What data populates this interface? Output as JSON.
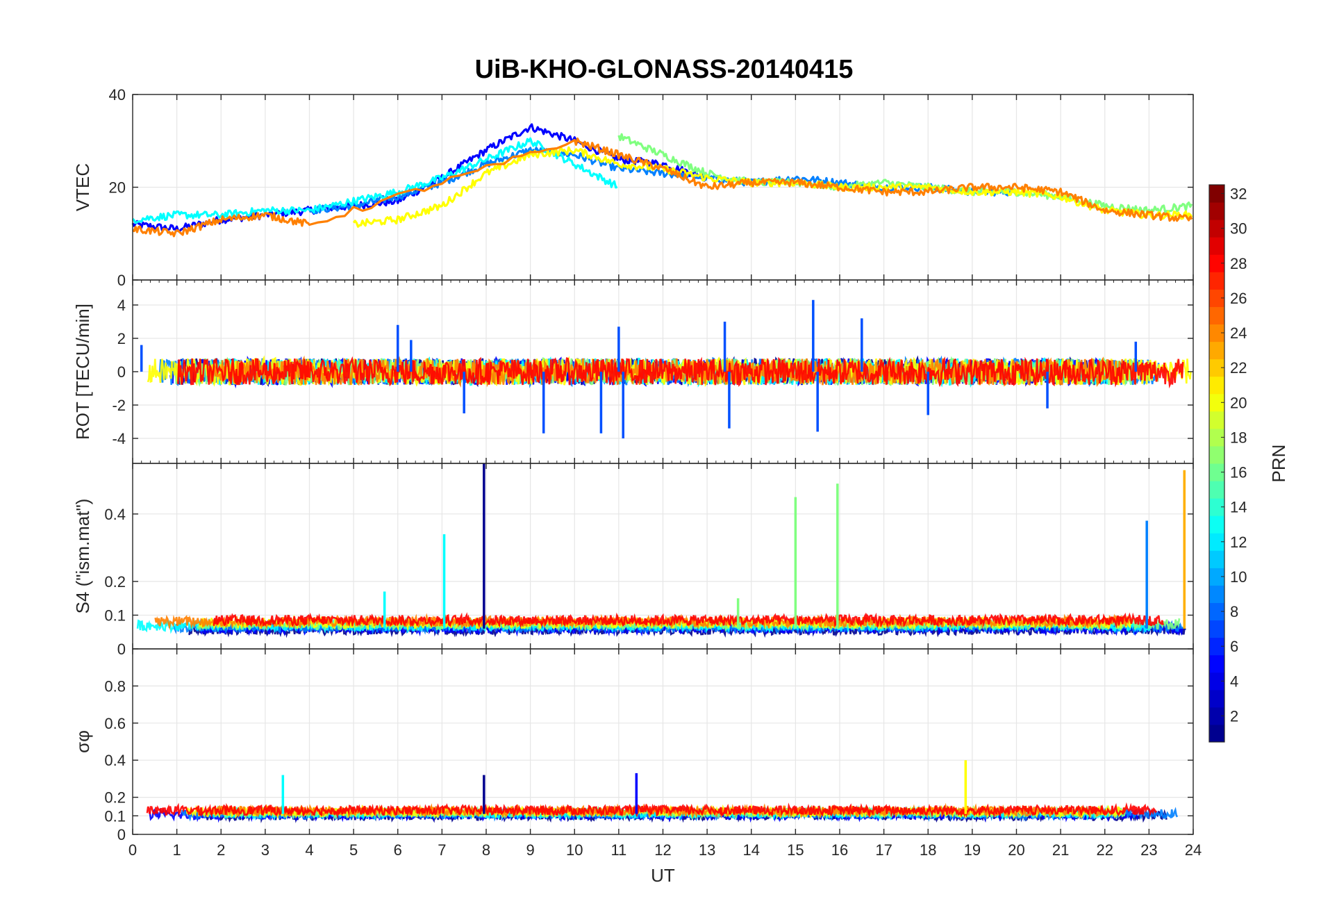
{
  "figure": {
    "title": "UiB-KHO-GLONASS-20140415",
    "colorbar_label": "PRN",
    "colormap": [
      "#00008f",
      "#0000ff",
      "#0080ff",
      "#00ffff",
      "#80ff80",
      "#ffff00",
      "#ff8000",
      "#ff0000",
      "#800000"
    ]
  },
  "chart_data": [
    {
      "type": "line",
      "panel": "vtec",
      "ylabel": "VTEC",
      "xlabel": "",
      "xlim": [
        0,
        24
      ],
      "ylim": [
        0,
        40
      ],
      "xticks": [
        0,
        1,
        2,
        3,
        4,
        5,
        6,
        7,
        8,
        9,
        10,
        11,
        12,
        13,
        14,
        15,
        16,
        17,
        18,
        19,
        20,
        21,
        22,
        23,
        24
      ],
      "yticks": [
        0,
        20,
        40
      ],
      "grid": true,
      "series": [
        {
          "color": "#0000ff",
          "x": [
            0,
            1,
            2,
            3,
            4,
            5,
            6,
            7,
            8,
            9,
            10,
            11,
            12,
            13
          ],
          "values": [
            12,
            11,
            13,
            14,
            15,
            16,
            17,
            22,
            28,
            33,
            30,
            26,
            25,
            22
          ]
        },
        {
          "color": "#0080ff",
          "x": [
            4,
            5,
            6,
            7,
            8,
            9,
            10,
            11,
            12,
            13,
            14,
            15,
            16,
            17,
            18,
            19,
            20
          ],
          "values": [
            15,
            16,
            18,
            21,
            25,
            28,
            27,
            24,
            23,
            22,
            21,
            22,
            21,
            20,
            20,
            19,
            19
          ]
        },
        {
          "color": "#00ffff",
          "x": [
            0,
            1,
            2,
            3,
            4,
            5,
            6,
            7,
            8,
            9,
            10,
            11
          ],
          "values": [
            13,
            14,
            14,
            15,
            15,
            17,
            19,
            22,
            26,
            30,
            25,
            20
          ]
        },
        {
          "color": "#80ff80",
          "x": [
            11,
            12,
            13,
            14,
            15,
            16,
            17,
            18,
            19,
            20,
            21,
            22,
            23,
            24
          ],
          "values": [
            31,
            27,
            23,
            21,
            21,
            20,
            21,
            20,
            19,
            19,
            18,
            16,
            15,
            16
          ]
        },
        {
          "color": "#ffff00",
          "x": [
            5,
            6,
            7,
            8,
            9,
            10,
            11,
            12,
            13,
            14,
            15,
            16,
            17,
            18,
            19,
            20,
            21,
            22,
            23,
            24
          ],
          "values": [
            12,
            13,
            16,
            23,
            27,
            28,
            25,
            24,
            22,
            21,
            21,
            20,
            20,
            20,
            19,
            19,
            18,
            15,
            14,
            14
          ]
        },
        {
          "color": "#ff8000",
          "x": [
            0,
            1,
            2,
            3,
            4,
            10,
            11,
            12,
            13,
            14,
            15,
            16,
            17,
            18,
            19,
            20,
            21,
            22,
            23,
            24
          ],
          "values": [
            11,
            10,
            13,
            14,
            12,
            30,
            27,
            24,
            20,
            21,
            21,
            20,
            19,
            19,
            20,
            20,
            19,
            15,
            14,
            13
          ]
        }
      ]
    },
    {
      "type": "line",
      "panel": "rot",
      "ylabel": "ROT [TECU/min]",
      "xlabel": "",
      "xlim": [
        0,
        24
      ],
      "ylim": [
        -5.5,
        5.5
      ],
      "xticks": [
        0,
        1,
        2,
        3,
        4,
        5,
        6,
        7,
        8,
        9,
        10,
        11,
        12,
        13,
        14,
        15,
        16,
        17,
        18,
        19,
        20,
        21,
        22,
        23,
        24
      ],
      "yticks": [
        -4,
        -2,
        0,
        2,
        4
      ],
      "grid": true,
      "peaks": [
        {
          "x": 6.0,
          "values": 2.8
        },
        {
          "x": 6.3,
          "values": 1.9
        },
        {
          "x": 9.3,
          "values": -3.7
        },
        {
          "x": 10.6,
          "values": -3.7
        },
        {
          "x": 11.1,
          "values": -4.0
        },
        {
          "x": 11.0,
          "values": 2.7
        },
        {
          "x": 13.5,
          "values": -3.4
        },
        {
          "x": 13.4,
          "values": 3.0
        },
        {
          "x": 15.4,
          "values": 4.3
        },
        {
          "x": 15.5,
          "values": -3.6
        },
        {
          "x": 16.5,
          "values": 3.2
        },
        {
          "x": 18.0,
          "values": -2.6
        },
        {
          "x": 22.7,
          "values": 1.8
        },
        {
          "x": 20.7,
          "values": -2.2
        },
        {
          "x": 7.5,
          "values": -2.5
        },
        {
          "x": 0.2,
          "values": 1.6
        }
      ]
    },
    {
      "type": "line",
      "panel": "s4",
      "ylabel": "S4 (\"ism.mat\")",
      "xlabel": "",
      "xlim": [
        0,
        24
      ],
      "ylim": [
        0,
        0.55
      ],
      "xticks": [
        0,
        1,
        2,
        3,
        4,
        5,
        6,
        7,
        8,
        9,
        10,
        11,
        12,
        13,
        14,
        15,
        16,
        17,
        18,
        19,
        20,
        21,
        22,
        23,
        24
      ],
      "yticks": [
        0,
        0.1,
        0.2,
        0.4
      ],
      "grid": true,
      "spikes": [
        {
          "x": 7.95,
          "values": 0.55,
          "color": "#00008f"
        },
        {
          "x": 7.05,
          "values": 0.34,
          "color": "#00ffff"
        },
        {
          "x": 15.0,
          "values": 0.45,
          "color": "#80ff80"
        },
        {
          "x": 15.95,
          "values": 0.49,
          "color": "#80ff80"
        },
        {
          "x": 22.95,
          "values": 0.38,
          "color": "#0080ff"
        },
        {
          "x": 23.8,
          "values": 0.53,
          "color": "#ffb000"
        },
        {
          "x": 5.7,
          "values": 0.17,
          "color": "#00ffff"
        },
        {
          "x": 13.7,
          "values": 0.15,
          "color": "#80ff80"
        }
      ]
    },
    {
      "type": "line",
      "panel": "sigma_phi",
      "ylabel": "σφ",
      "xlabel": "UT",
      "xlim": [
        0,
        24
      ],
      "ylim": [
        0,
        1
      ],
      "xticks": [
        0,
        1,
        2,
        3,
        4,
        5,
        6,
        7,
        8,
        9,
        10,
        11,
        12,
        13,
        14,
        15,
        16,
        17,
        18,
        19,
        20,
        21,
        22,
        23,
        24
      ],
      "yticks": [
        0,
        0.1,
        0.2,
        0.4,
        0.6,
        0.8
      ],
      "grid": true,
      "spikes": [
        {
          "x": 3.4,
          "values": 0.32,
          "color": "#00ffff"
        },
        {
          "x": 7.95,
          "values": 0.32,
          "color": "#00008f"
        },
        {
          "x": 11.4,
          "values": 0.33,
          "color": "#0000ff"
        },
        {
          "x": 18.85,
          "values": 0.4,
          "color": "#ffff00"
        }
      ]
    },
    {
      "type": "heatmap",
      "panel": "colorbar",
      "ylabel": "PRN",
      "ylim": [
        1,
        32
      ],
      "yticks": [
        2,
        4,
        6,
        8,
        10,
        12,
        14,
        16,
        18,
        20,
        22,
        24,
        26,
        28,
        30,
        32
      ]
    }
  ]
}
